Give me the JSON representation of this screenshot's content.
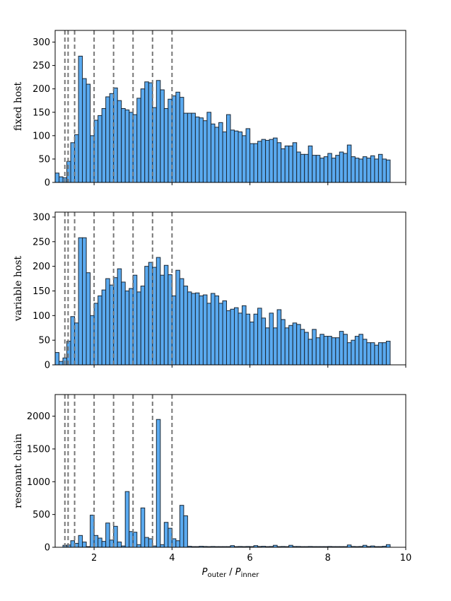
{
  "chart_data": [
    {
      "type": "bar",
      "ylabel": "fixed host",
      "xlim": [
        1,
        10
      ],
      "ylim": [
        0,
        325
      ],
      "yticks": [
        0,
        50,
        100,
        150,
        200,
        250,
        300
      ],
      "bin_start": 1.0,
      "bin_width": 0.1,
      "resonance_lines": [
        1.25,
        1.333,
        1.5,
        2,
        2.5,
        3,
        3.5,
        4
      ],
      "values": [
        20,
        12,
        10,
        45,
        85,
        102,
        270,
        222,
        210,
        100,
        133,
        143,
        158,
        183,
        190,
        202,
        175,
        158,
        155,
        150,
        145,
        180,
        200,
        215,
        213,
        160,
        218,
        198,
        158,
        178,
        185,
        193,
        182,
        148,
        148,
        148,
        140,
        138,
        132,
        150,
        125,
        118,
        128,
        108,
        145,
        112,
        110,
        108,
        100,
        115,
        83,
        83,
        88,
        92,
        90,
        92,
        95,
        85,
        72,
        78,
        78,
        85,
        65,
        60,
        60,
        78,
        58,
        58,
        52,
        55,
        62,
        52,
        58,
        65,
        62,
        80,
        55,
        52,
        50,
        55,
        52,
        57,
        50,
        60,
        50,
        48
      ],
      "bar_color": "#5aaaf0",
      "edge_color": "#1a2633",
      "line_color": "#777777"
    },
    {
      "type": "bar",
      "ylabel": "variable host",
      "xlim": [
        1,
        10
      ],
      "ylim": [
        0,
        310
      ],
      "yticks": [
        0,
        50,
        100,
        150,
        200,
        250,
        300
      ],
      "bin_start": 1.0,
      "bin_width": 0.1,
      "resonance_lines": [
        1.25,
        1.333,
        1.5,
        2,
        2.5,
        3,
        3.5,
        4
      ],
      "values": [
        25,
        7,
        14,
        48,
        98,
        85,
        258,
        258,
        187,
        100,
        125,
        140,
        152,
        175,
        162,
        177,
        195,
        168,
        150,
        155,
        182,
        148,
        160,
        200,
        208,
        198,
        218,
        182,
        202,
        183,
        140,
        192,
        175,
        160,
        148,
        145,
        146,
        140,
        142,
        125,
        145,
        140,
        125,
        130,
        110,
        113,
        116,
        105,
        120,
        103,
        87,
        103,
        115,
        95,
        75,
        105,
        75,
        112,
        92,
        75,
        80,
        85,
        82,
        72,
        66,
        52,
        72,
        55,
        62,
        58,
        58,
        55,
        55,
        68,
        62,
        45,
        50,
        58,
        62,
        52,
        45,
        45,
        40,
        45,
        45,
        48
      ],
      "bar_color": "#5aaaf0",
      "edge_color": "#1a2633",
      "line_color": "#777777"
    },
    {
      "type": "bar",
      "ylabel": "resonant chain",
      "xlabel_main": "P",
      "xlabel_sub1": "outer",
      "xlabel_sep": " / ",
      "xlabel_sub2": "inner",
      "xlim": [
        1,
        10
      ],
      "ylim": [
        0,
        2330
      ],
      "yticks": [
        0,
        500,
        1000,
        1500,
        2000
      ],
      "xticks": [
        2,
        4,
        6,
        8,
        10
      ],
      "bin_start": 1.0,
      "bin_width": 0.1,
      "resonance_lines": [
        1.25,
        1.333,
        1.5,
        2,
        2.5,
        3,
        3.5,
        4
      ],
      "values": [
        0,
        0,
        30,
        35,
        100,
        60,
        180,
        80,
        10,
        490,
        180,
        140,
        90,
        370,
        110,
        320,
        80,
        20,
        850,
        240,
        230,
        40,
        600,
        150,
        130,
        20,
        1950,
        40,
        380,
        290,
        130,
        100,
        640,
        480,
        15,
        10,
        10,
        15,
        12,
        10,
        12,
        10,
        10,
        10,
        10,
        25,
        10,
        12,
        10,
        12,
        10,
        25,
        12,
        15,
        10,
        12,
        30,
        10,
        12,
        10,
        30,
        12,
        12,
        10,
        10,
        12,
        10,
        10,
        10,
        10,
        12,
        10,
        10,
        10,
        10,
        35,
        12,
        10,
        12,
        30,
        12,
        20,
        10,
        10,
        15,
        40
      ],
      "bar_color": "#5aaaf0",
      "edge_color": "#1a2633",
      "line_color": "#777777"
    }
  ]
}
